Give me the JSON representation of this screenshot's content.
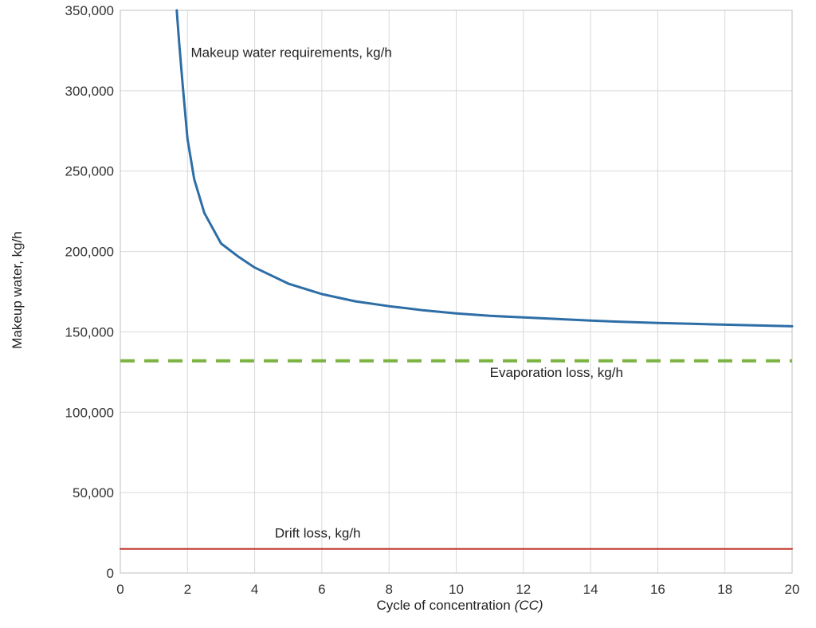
{
  "chart_data": {
    "type": "line",
    "title": "",
    "xlabel": "Cycle of concentration",
    "xlabel_suffix": "(CC)",
    "ylabel": "Makeup water, kg/h",
    "xlim": [
      0,
      20
    ],
    "ylim": [
      0,
      350000
    ],
    "x_ticks": [
      0,
      2,
      4,
      6,
      8,
      10,
      12,
      14,
      16,
      18,
      20
    ],
    "y_ticks": [
      0,
      50000,
      100000,
      150000,
      200000,
      250000,
      300000,
      350000
    ],
    "x_tick_labels": [
      "0",
      "2",
      "4",
      "6",
      "8",
      "10",
      "12",
      "14",
      "16",
      "18",
      "20"
    ],
    "y_tick_labels": [
      "0",
      "50,000",
      "100,000",
      "150,000",
      "200,000",
      "250,000",
      "300,000",
      "350,000"
    ],
    "grid": true,
    "series": [
      {
        "name": "Makeup water requirements, kg/h",
        "color": "#2e6ea6",
        "style": "solid",
        "x": [
          1.68,
          1.75,
          1.85,
          2.0,
          2.2,
          2.5,
          3.0,
          3.5,
          4.0,
          5.0,
          6.0,
          7.0,
          8.0,
          9.0,
          10.0,
          11.0,
          12.0,
          13.0,
          14.0,
          15.0,
          16.0,
          17.0,
          18.0,
          19.0,
          20.0
        ],
        "y": [
          350000,
          330000,
          305000,
          270000,
          245000,
          224000,
          205000,
          197000,
          190000,
          180000,
          173500,
          169000,
          166000,
          163500,
          161500,
          160000,
          159000,
          158000,
          157000,
          156200,
          155500,
          155000,
          154500,
          154000,
          153500
        ]
      },
      {
        "name": "Evaporation loss, kg/h",
        "color": "#7cb342",
        "style": "dashed",
        "x": [
          0,
          20
        ],
        "y": [
          132000,
          132000
        ]
      },
      {
        "name": "Drift loss, kg/h",
        "color": "#c0392b",
        "style": "solid",
        "x": [
          0,
          20
        ],
        "y": [
          15000,
          15000
        ]
      }
    ],
    "annotations": [
      {
        "text": "Makeup water requirements, kg/h",
        "x": 2.1,
        "y": 321000
      },
      {
        "text": "Evaporation loss, kg/h",
        "x": 11.0,
        "y": 122000
      },
      {
        "text": "Drift loss, kg/h",
        "x": 4.6,
        "y": 22000
      }
    ]
  }
}
